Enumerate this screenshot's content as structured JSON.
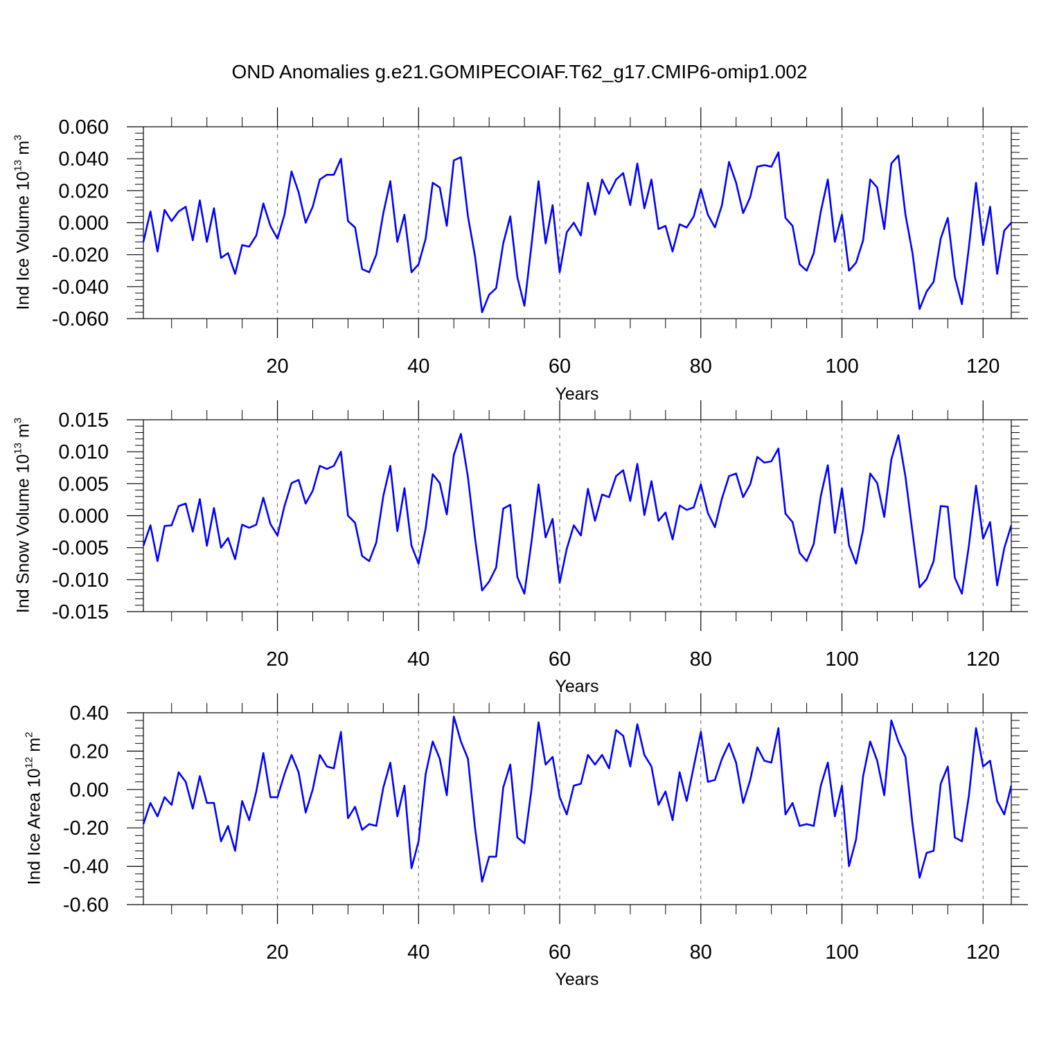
{
  "title": "OND Anomalies g.e21.GOMIPECOIAF.T62_g17.CMIP6-omip1.002",
  "line_color": "#0000ff",
  "chart_data": [
    {
      "type": "line",
      "title": "",
      "xlabel": "Years",
      "ylabel_main": "Ind Ice Volume 10",
      "ylabel_exp": "13",
      "ylabel_unit": " m",
      "ylabel_unit_exp": "3",
      "xlim": [
        1,
        124
      ],
      "ylim": [
        -0.06,
        0.06
      ],
      "xticks": [
        20,
        40,
        60,
        80,
        100,
        120
      ],
      "xtick_labels": [
        "20",
        "40",
        "60",
        "80",
        "100",
        "120"
      ],
      "yticks": [
        -0.06,
        -0.04,
        -0.02,
        0.0,
        0.02,
        0.04,
        0.06
      ],
      "ytick_labels": [
        "-0.060",
        "-0.040",
        "-0.020",
        "0.000",
        "0.020",
        "0.040",
        "0.060"
      ],
      "grid": "dashed vertical at major x ticks",
      "series": [
        {
          "name": "Ind Ice Volume",
          "values": [
            -0.012,
            0.007,
            -0.018,
            0.008,
            0.001,
            0.007,
            0.01,
            -0.011,
            0.014,
            -0.012,
            0.009,
            -0.022,
            -0.019,
            -0.032,
            -0.014,
            -0.015,
            -0.008,
            0.012,
            -0.002,
            -0.01,
            0.005,
            0.032,
            0.019,
            0.0,
            0.01,
            0.027,
            0.03,
            0.03,
            0.04,
            0.001,
            -0.003,
            -0.029,
            -0.031,
            -0.02,
            0.006,
            0.026,
            -0.012,
            0.005,
            -0.031,
            -0.026,
            -0.01,
            0.025,
            0.022,
            -0.002,
            0.039,
            0.041,
            0.004,
            -0.021,
            -0.056,
            -0.045,
            -0.041,
            -0.013,
            0.004,
            -0.034,
            -0.052,
            -0.014,
            0.026,
            -0.013,
            0.011,
            -0.031,
            -0.006,
            0.0,
            -0.008,
            0.025,
            0.005,
            0.027,
            0.018,
            0.027,
            0.031,
            0.011,
            0.037,
            0.009,
            0.027,
            -0.004,
            -0.002,
            -0.018,
            -0.001,
            -0.003,
            0.004,
            0.021,
            0.005,
            -0.003,
            0.011,
            0.038,
            0.025,
            0.006,
            0.016,
            0.035,
            0.036,
            0.035,
            0.044,
            0.003,
            -0.002,
            -0.026,
            -0.03,
            -0.019,
            0.007,
            0.027,
            -0.012,
            0.005,
            -0.03,
            -0.025,
            -0.011,
            0.027,
            0.022,
            -0.004,
            0.037,
            0.042,
            0.005,
            -0.019,
            -0.054,
            -0.043,
            -0.037,
            -0.01,
            0.003,
            -0.034,
            -0.051,
            -0.015,
            0.025,
            -0.014,
            0.01,
            -0.032,
            -0.005,
            0.0
          ]
        }
      ]
    },
    {
      "type": "line",
      "title": "",
      "xlabel": "Years",
      "ylabel_main": "Ind Snow Volume 10",
      "ylabel_exp": "13",
      "ylabel_unit": " m",
      "ylabel_unit_exp": "3",
      "xlim": [
        1,
        124
      ],
      "ylim": [
        -0.015,
        0.015
      ],
      "xticks": [
        20,
        40,
        60,
        80,
        100,
        120
      ],
      "xtick_labels": [
        "20",
        "40",
        "60",
        "80",
        "100",
        "120"
      ],
      "yticks": [
        -0.015,
        -0.01,
        -0.005,
        0.0,
        0.005,
        0.01,
        0.015
      ],
      "ytick_labels": [
        "-0.015",
        "-0.010",
        "-0.005",
        "0.000",
        "0.005",
        "0.010",
        "0.015"
      ],
      "grid": "dashed vertical at major x ticks",
      "series": [
        {
          "name": "Ind Snow Volume",
          "values": [
            -0.0047,
            -0.0015,
            -0.0071,
            -0.0016,
            -0.0015,
            0.0015,
            0.0019,
            -0.0025,
            0.0026,
            -0.0047,
            0.0012,
            -0.005,
            -0.0035,
            -0.0068,
            -0.0014,
            -0.0019,
            -0.0014,
            0.0028,
            -0.0013,
            -0.0031,
            0.0015,
            0.0051,
            0.0056,
            0.0019,
            0.0039,
            0.0078,
            0.0073,
            0.0078,
            0.01,
            0.0,
            -0.0011,
            -0.0063,
            -0.0071,
            -0.0042,
            0.0031,
            0.0078,
            -0.0024,
            0.0043,
            -0.0047,
            -0.0075,
            -0.002,
            0.0065,
            0.0051,
            0.0002,
            0.0095,
            0.0128,
            0.006,
            -0.0035,
            -0.0117,
            -0.0103,
            -0.0081,
            0.0011,
            0.0017,
            -0.0096,
            -0.0122,
            -0.0041,
            0.0049,
            -0.0034,
            -0.0005,
            -0.0105,
            -0.0052,
            -0.0015,
            -0.0031,
            0.0042,
            -0.0008,
            0.0033,
            0.0029,
            0.0062,
            0.0071,
            0.0023,
            0.0081,
            0.0001,
            0.0054,
            -0.0008,
            0.0005,
            -0.0037,
            0.0016,
            0.0009,
            0.0013,
            0.0049,
            0.0004,
            -0.0018,
            0.0027,
            0.0062,
            0.0066,
            0.0029,
            0.0049,
            0.0092,
            0.0083,
            0.0085,
            0.0105,
            0.0003,
            -0.001,
            -0.0058,
            -0.0071,
            -0.0044,
            0.0031,
            0.0079,
            -0.0027,
            0.0043,
            -0.0046,
            -0.0075,
            -0.0022,
            0.0066,
            0.0051,
            -0.0002,
            0.0088,
            0.0126,
            0.0061,
            -0.0026,
            -0.0112,
            -0.0099,
            -0.0071,
            0.0015,
            0.0014,
            -0.0097,
            -0.0122,
            -0.0046,
            0.0047,
            -0.0036,
            -0.001,
            -0.0109,
            -0.0051,
            -0.0015
          ]
        }
      ]
    },
    {
      "type": "line",
      "title": "",
      "xlabel": "Years",
      "ylabel_main": "Ind Ice Area 10",
      "ylabel_exp": "12",
      "ylabel_unit": " m",
      "ylabel_unit_exp": "2",
      "xlim": [
        1,
        124
      ],
      "ylim": [
        -0.6,
        0.4
      ],
      "xticks": [
        20,
        40,
        60,
        80,
        100,
        120
      ],
      "xtick_labels": [
        "20",
        "40",
        "60",
        "80",
        "100",
        "120"
      ],
      "yticks": [
        -0.6,
        -0.4,
        -0.2,
        0.0,
        0.2,
        0.4
      ],
      "ytick_labels": [
        "-0.60",
        "-0.40",
        "-0.20",
        "0.00",
        "0.20",
        "0.40"
      ],
      "grid": "dashed vertical at major x ticks",
      "series": [
        {
          "name": "Ind Ice Area",
          "values": [
            -0.18,
            -0.07,
            -0.14,
            -0.04,
            -0.08,
            0.09,
            0.04,
            -0.1,
            0.07,
            -0.07,
            -0.07,
            -0.27,
            -0.19,
            -0.32,
            -0.06,
            -0.16,
            -0.01,
            0.19,
            -0.04,
            -0.04,
            0.08,
            0.18,
            0.09,
            -0.12,
            0.0,
            0.18,
            0.12,
            0.11,
            0.3,
            -0.15,
            -0.09,
            -0.21,
            -0.18,
            -0.19,
            0.01,
            0.14,
            -0.14,
            0.02,
            -0.41,
            -0.27,
            0.08,
            0.25,
            0.16,
            -0.03,
            0.38,
            0.25,
            0.16,
            -0.2,
            -0.48,
            -0.35,
            -0.35,
            0.01,
            0.13,
            -0.25,
            -0.28,
            0.0,
            0.35,
            0.13,
            0.17,
            -0.04,
            -0.13,
            0.02,
            0.03,
            0.18,
            0.13,
            0.18,
            0.11,
            0.31,
            0.28,
            0.12,
            0.34,
            0.18,
            0.12,
            -0.08,
            -0.01,
            -0.16,
            0.09,
            -0.06,
            0.12,
            0.3,
            0.04,
            0.05,
            0.16,
            0.24,
            0.14,
            -0.07,
            0.05,
            0.22,
            0.15,
            0.14,
            0.32,
            -0.13,
            -0.07,
            -0.19,
            -0.18,
            -0.19,
            0.02,
            0.14,
            -0.14,
            0.02,
            -0.4,
            -0.26,
            0.07,
            0.25,
            0.15,
            -0.03,
            0.36,
            0.25,
            0.17,
            -0.18,
            -0.46,
            -0.33,
            -0.32,
            0.03,
            0.12,
            -0.25,
            -0.27,
            -0.03,
            0.32,
            0.12,
            0.15,
            -0.06,
            -0.13,
            0.02
          ]
        }
      ]
    }
  ]
}
